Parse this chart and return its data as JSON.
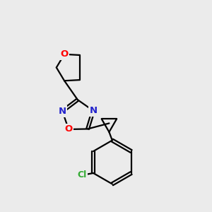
{
  "background_color": "#ebebeb",
  "bond_color": "#000000",
  "atom_colors": {
    "O": "#ff0000",
    "N": "#2222cc",
    "Cl": "#33aa33",
    "C": "#000000"
  },
  "bond_width": 1.6,
  "font_size_hetero": 9.5,
  "font_size_cl": 9.0
}
